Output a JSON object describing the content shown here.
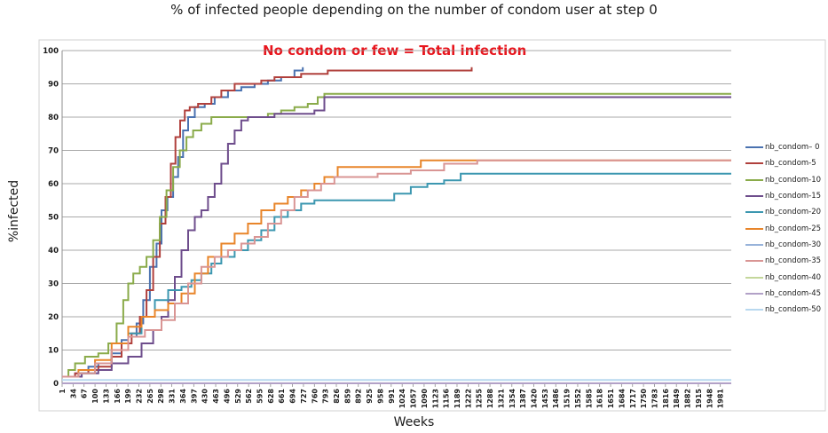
{
  "chart_data": {
    "type": "line",
    "title": "% of infected people depending on the number of condom user at step 0",
    "xlabel": "Weeks",
    "ylabel": "%infected",
    "annotation": "No condom or few = Total infection",
    "ylim": [
      0,
      100
    ],
    "yticks": [
      0,
      10,
      20,
      30,
      40,
      50,
      60,
      70,
      80,
      90,
      100
    ],
    "xlim": [
      1,
      2014
    ],
    "xticks": [
      1,
      34,
      67,
      100,
      133,
      166,
      199,
      232,
      265,
      298,
      331,
      364,
      397,
      430,
      463,
      496,
      529,
      562,
      595,
      628,
      661,
      694,
      727,
      760,
      793,
      826,
      859,
      892,
      925,
      958,
      991,
      1024,
      1057,
      1090,
      1123,
      1156,
      1189,
      1222,
      1255,
      1288,
      1321,
      1354,
      1387,
      1420,
      1453,
      1486,
      1519,
      1552,
      1585,
      1618,
      1651,
      1684,
      1717,
      1750,
      1783,
      1816,
      1849,
      1882,
      1915,
      1948,
      1981
    ],
    "grid": true,
    "legend_position": "right",
    "series": [
      {
        "name": "nb_condom– 0",
        "color": "#4a72b0",
        "x": [
          1,
          40,
          80,
          110,
          150,
          180,
          200,
          225,
          245,
          265,
          285,
          300,
          318,
          335,
          350,
          365,
          380,
          400,
          430,
          460,
          500,
          540,
          580,
          620,
          660,
          700,
          725
        ],
        "y": [
          2,
          3,
          5,
          6,
          9,
          13,
          14,
          18,
          25,
          35,
          42,
          52,
          56,
          62,
          68,
          76,
          80,
          83,
          84,
          86,
          88,
          89,
          90,
          91,
          92,
          94,
          95
        ]
      },
      {
        "name": "nb_condom-5",
        "color": "#b0403c",
        "x": [
          1,
          40,
          80,
          110,
          150,
          180,
          210,
          235,
          255,
          275,
          295,
          312,
          328,
          342,
          356,
          370,
          385,
          410,
          450,
          480,
          520,
          560,
          600,
          640,
          680,
          720,
          800,
          900,
          1000,
          1100,
          1200,
          1230,
          1233
        ],
        "y": [
          2,
          3,
          4,
          5,
          8,
          12,
          15,
          20,
          28,
          38,
          48,
          56,
          66,
          74,
          79,
          82,
          83,
          84,
          86,
          88,
          90,
          90,
          91,
          92,
          92,
          93,
          94,
          94,
          94,
          94,
          94,
          94,
          95
        ]
      },
      {
        "name": "nb_condom-10",
        "color": "#8aab4a",
        "x": [
          1,
          20,
          40,
          70,
          110,
          140,
          165,
          185,
          200,
          215,
          235,
          255,
          275,
          295,
          315,
          335,
          355,
          375,
          395,
          420,
          450,
          480,
          530,
          580,
          620,
          660,
          700,
          740,
          770,
          790,
          900,
          1100,
          1300,
          1600,
          1800,
          2014
        ],
        "y": [
          2,
          4,
          6,
          8,
          9,
          12,
          18,
          25,
          30,
          33,
          35,
          38,
          43,
          50,
          58,
          65,
          70,
          74,
          76,
          78,
          80,
          80,
          80,
          80,
          81,
          82,
          83,
          84,
          86,
          87,
          87,
          87,
          87,
          87,
          87,
          87
        ]
      },
      {
        "name": "nb_condom-15",
        "color": "#6e4d8c",
        "x": [
          1,
          60,
          110,
          150,
          200,
          240,
          275,
          300,
          320,
          340,
          360,
          380,
          400,
          420,
          440,
          460,
          480,
          500,
          520,
          540,
          560,
          580,
          610,
          640,
          680,
          720,
          760,
          790,
          900,
          1100,
          1300,
          1600,
          1800,
          2014
        ],
        "y": [
          2,
          3,
          4,
          6,
          8,
          12,
          16,
          20,
          25,
          32,
          40,
          46,
          50,
          52,
          56,
          60,
          66,
          72,
          76,
          79,
          80,
          80,
          80,
          81,
          81,
          81,
          82,
          86,
          86,
          86,
          86,
          86,
          86,
          86
        ]
      },
      {
        "name": "nb_condom-20",
        "color": "#3c97b0",
        "x": [
          1,
          50,
          100,
          150,
          200,
          240,
          280,
          320,
          360,
          390,
          420,
          450,
          480,
          520,
          560,
          600,
          640,
          680,
          720,
          760,
          800,
          850,
          900,
          950,
          1000,
          1050,
          1100,
          1150,
          1200,
          1250,
          1300,
          1500,
          1700,
          1900,
          2014
        ],
        "y": [
          2,
          3,
          6,
          10,
          15,
          20,
          25,
          28,
          29,
          31,
          33,
          36,
          38,
          40,
          43,
          46,
          50,
          52,
          54,
          55,
          55,
          55,
          55,
          55,
          57,
          59,
          60,
          61,
          63,
          63,
          63,
          63,
          63,
          63,
          63
        ]
      },
      {
        "name": "nb_condom-25",
        "color": "#e8852a",
        "x": [
          1,
          50,
          100,
          150,
          200,
          240,
          280,
          320,
          360,
          400,
          440,
          480,
          520,
          560,
          600,
          640,
          680,
          720,
          760,
          790,
          830,
          900,
          1000,
          1080,
          1200,
          1300,
          1500,
          1700,
          1900,
          2014
        ],
        "y": [
          2,
          4,
          7,
          12,
          17,
          20,
          22,
          24,
          27,
          33,
          38,
          42,
          45,
          48,
          52,
          54,
          56,
          58,
          60,
          62,
          65,
          65,
          65,
          67,
          67,
          67,
          67,
          67,
          67,
          67
        ]
      },
      {
        "name": "nb_condom-30",
        "color": "#98b3da",
        "x": [
          1,
          2014
        ],
        "y": [
          0,
          0
        ]
      },
      {
        "name": "nb_condom-35",
        "color": "#d99594",
        "x": [
          1,
          50,
          100,
          150,
          200,
          250,
          300,
          340,
          380,
          420,
          460,
          500,
          540,
          580,
          620,
          660,
          700,
          740,
          780,
          820,
          880,
          950,
          1050,
          1150,
          1250,
          1350,
          1500,
          1700,
          1900,
          2014
        ],
        "y": [
          2,
          3,
          6,
          10,
          14,
          16,
          19,
          24,
          30,
          35,
          38,
          40,
          42,
          44,
          48,
          52,
          56,
          58,
          60,
          62,
          62,
          63,
          64,
          66,
          67,
          67,
          67,
          67,
          67,
          67
        ]
      },
      {
        "name": "nb_condom-40",
        "color": "#c4d79b",
        "x": [
          1,
          2014
        ],
        "y": [
          0,
          0
        ]
      },
      {
        "name": "nb_condom-45",
        "color": "#b2a1c7",
        "x": [
          1,
          2014
        ],
        "y": [
          0,
          0
        ]
      },
      {
        "name": "nb_condom-50",
        "color": "#b8d8ef",
        "x": [
          1,
          2014
        ],
        "y": [
          1,
          1
        ]
      }
    ]
  }
}
